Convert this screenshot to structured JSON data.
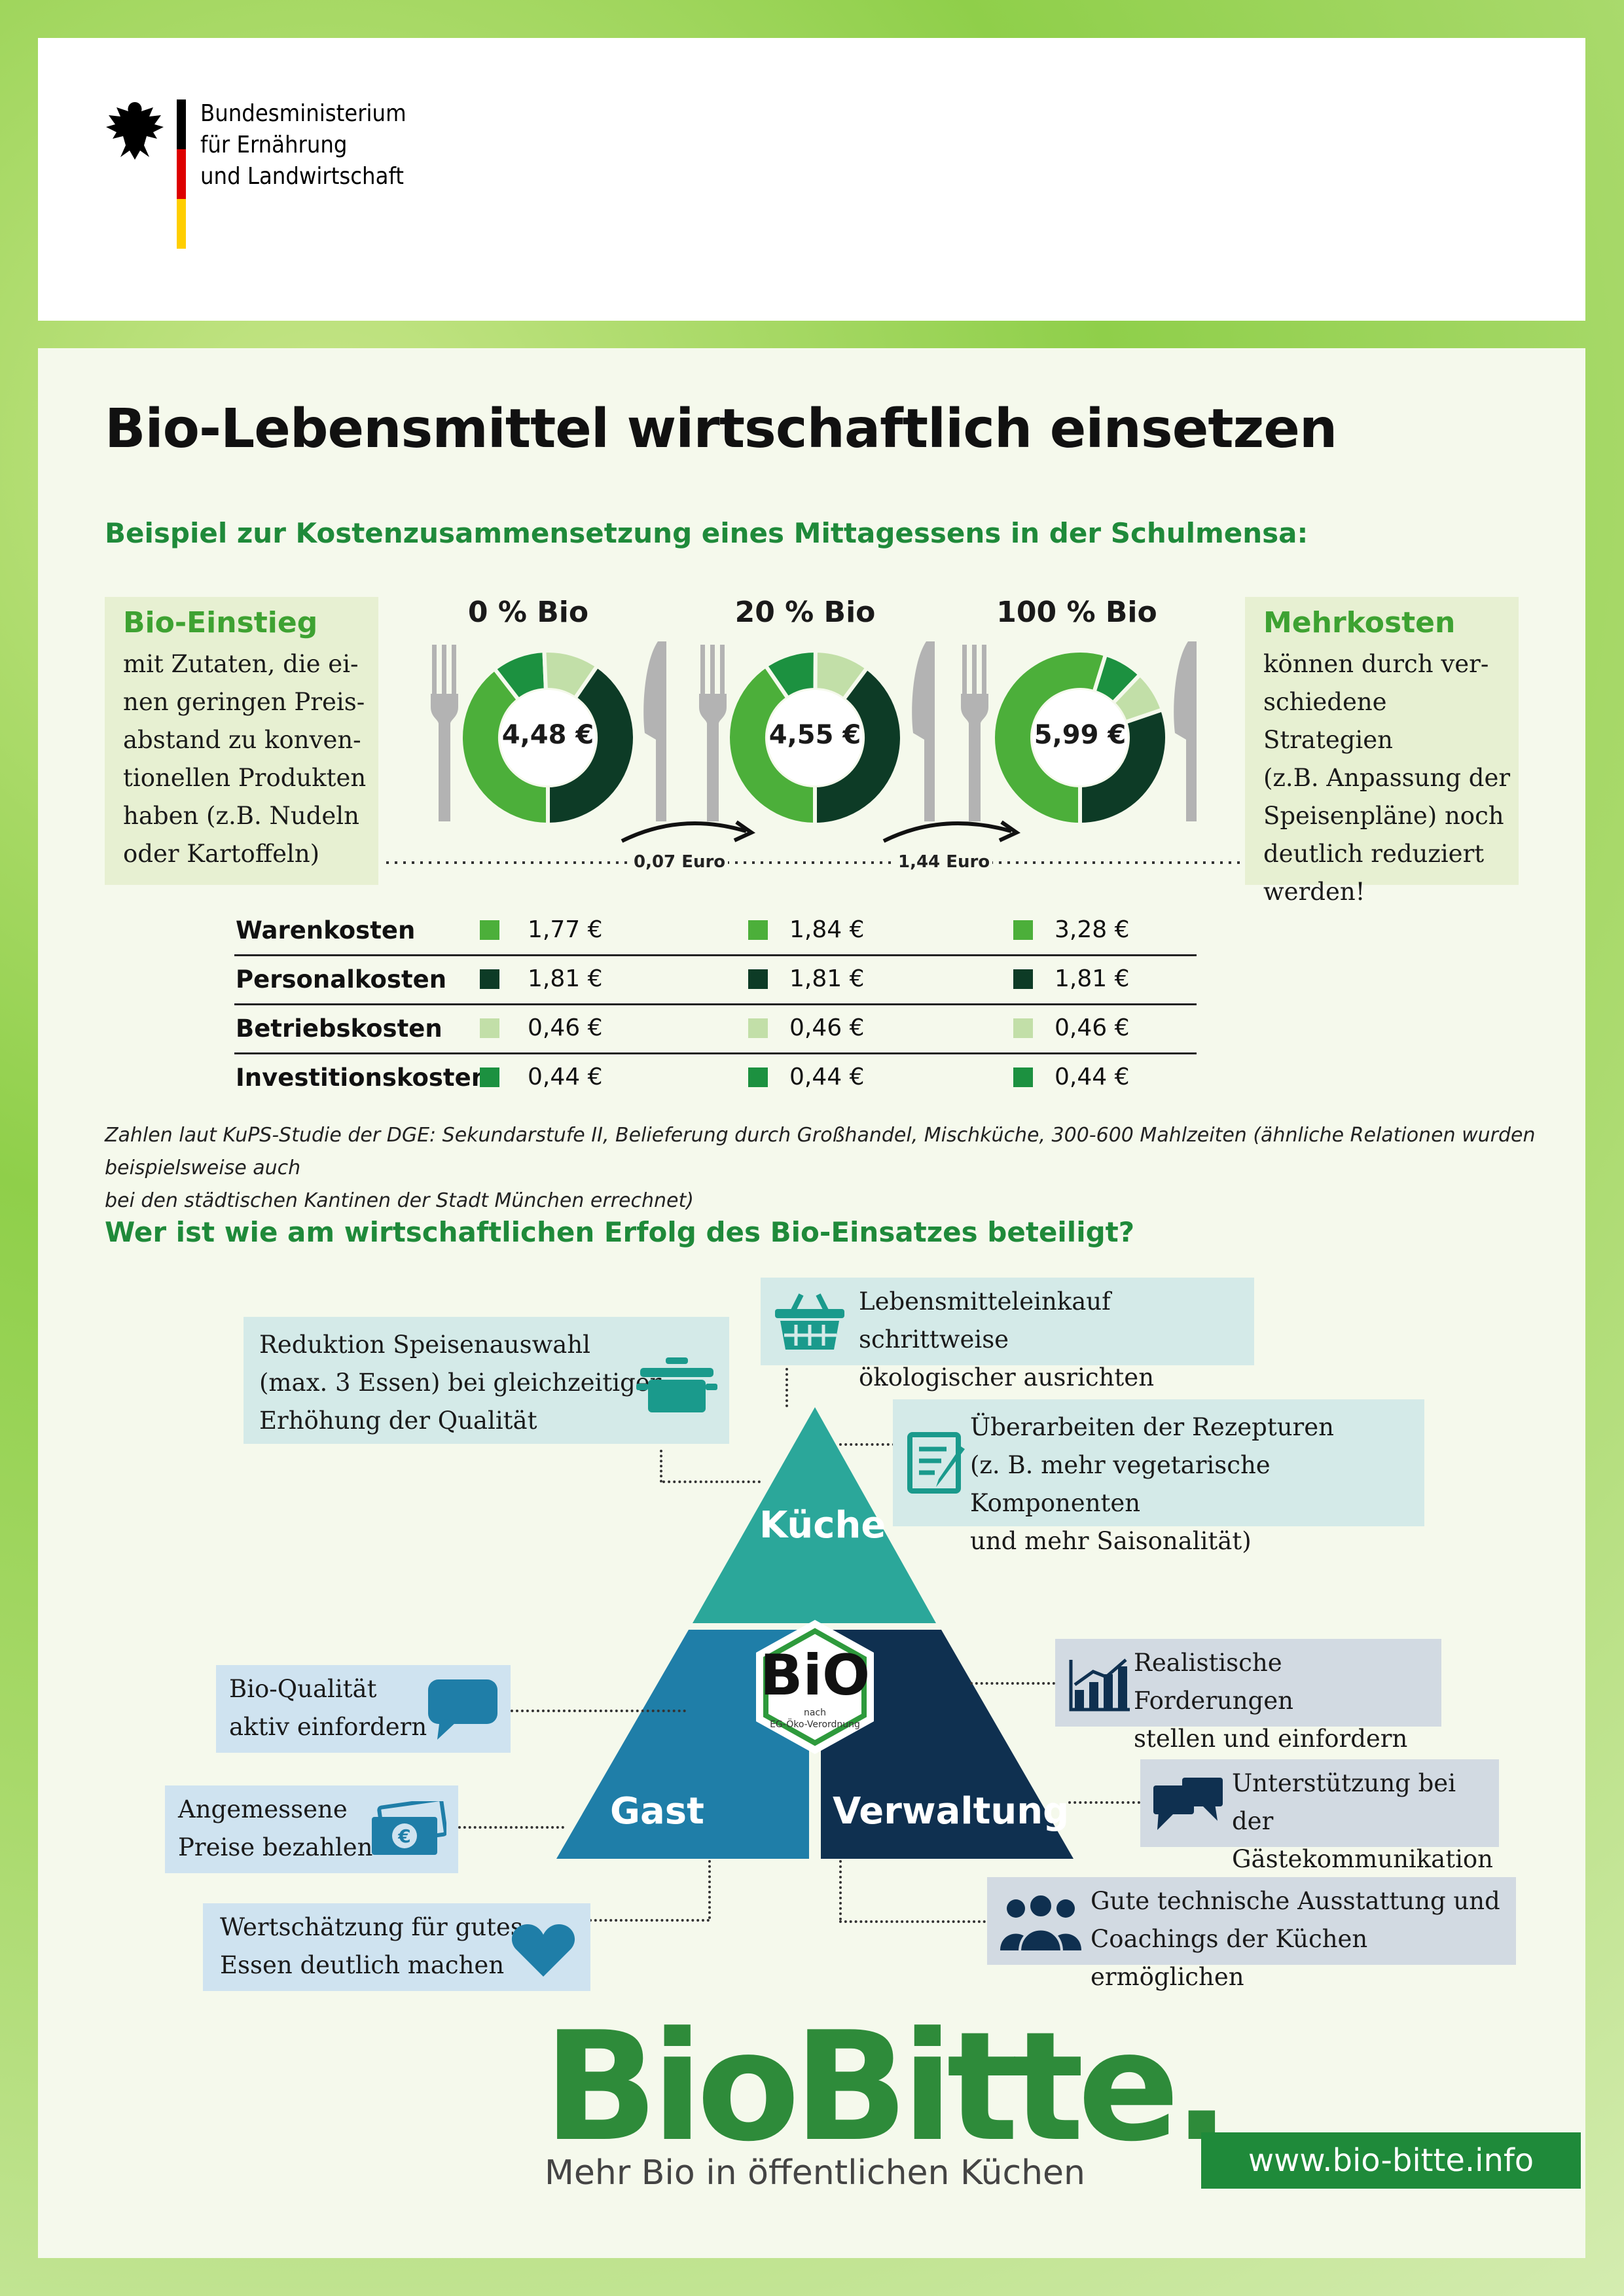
{
  "colors": {
    "warenkosten": "#4caf3a",
    "personalkosten": "#0d3b26",
    "betriebskosten": "#c2dfa8",
    "investitionskosten": "#1c9140",
    "kueche": "#2ba79a",
    "gast": "#1f7ea8",
    "verwaltung": "#0f3050"
  },
  "header": {
    "ministry_line1": "Bundesministerium",
    "ministry_line2": "für Ernährung",
    "ministry_line3": "und Landwirtschaft"
  },
  "title": "Bio-Lebensmittel wirtschaftlich einsetzen",
  "section1_heading": "Beispiel zur Kostenzusammensetzung eines Mittagessens in der Schulmensa:",
  "left_box": {
    "title": "Bio-Einstieg",
    "lines": [
      "mit Zutaten, die ei-",
      "nen geringen Preis-",
      "abstand zu konven-",
      "tionellen Produkten",
      "haben (z.B. Nudeln",
      "oder Kartoffeln)"
    ]
  },
  "right_box": {
    "title": "Mehrkosten",
    "lines": [
      "können durch ver-",
      "schiedene Strategien",
      "(z.B. Anpassung der",
      "Speisenpläne) noch",
      "deutlich reduziert",
      "werden!"
    ]
  },
  "chart_data": {
    "type": "donut",
    "categories": [
      "0 % Bio",
      "20 % Bio",
      "100 % Bio"
    ],
    "totals": [
      "4,48 €",
      "4,55 €",
      "5,99 €"
    ],
    "series": [
      {
        "name": "Warenkosten",
        "values": [
          1.77,
          1.84,
          3.28
        ],
        "labels": [
          "1,77 €",
          "1,84 €",
          "3,28 €"
        ]
      },
      {
        "name": "Personalkosten",
        "values": [
          1.81,
          1.81,
          1.81
        ],
        "labels": [
          "1,81 €",
          "1,81 €",
          "1,81 €"
        ]
      },
      {
        "name": "Betriebskosten",
        "values": [
          0.46,
          0.46,
          0.46
        ],
        "labels": [
          "0,46 €",
          "0,46 €",
          "0,46 €"
        ]
      },
      {
        "name": "Investitionskosten",
        "values": [
          0.44,
          0.44,
          0.44
        ],
        "labels": [
          "0,44 €",
          "0,44 €",
          "0,44 €"
        ]
      }
    ],
    "differences": [
      "0,07 Euro",
      "1,44 Euro"
    ]
  },
  "footnote": {
    "line1": "Zahlen laut KuPS-Studie der DGE: Sekundarstufe II, Belieferung durch Großhandel, Mischküche, 300-600 Mahlzeiten (ähnliche Relationen wurden beispielsweise auch",
    "line2": "bei den städtischen Kantinen der Stadt München errechnet)"
  },
  "section2_heading": "Wer ist wie am wirtschaftlichen Erfolg des Bio-Einsatzes beteiligt?",
  "pyramid": {
    "kueche": "Küche",
    "gast": "Gast",
    "verwaltung": "Verwaltung",
    "seal_main": "BiO",
    "seal_sub1": "nach",
    "seal_sub2": "EG-Öko-Verordnung"
  },
  "boxes": {
    "reduktion": [
      "Reduktion Speisenauswahl",
      "(max. 3 Essen) bei gleichzeitiger",
      "Erhöhung der Qualität"
    ],
    "einkauf": [
      "Lebensmitteleinkauf schrittweise",
      "ökologischer ausrichten"
    ],
    "rezepturen": [
      "Überarbeiten der Rezepturen",
      "(z. B. mehr vegetarische Komponenten",
      "und mehr Saisonalität)"
    ],
    "bio_qualitaet": [
      "Bio-Qualität",
      "aktiv einfordern"
    ],
    "preise": [
      "Angemessene",
      "Preise bezahlen"
    ],
    "wertschaetzung": [
      "Wertschätzung für gutes",
      "Essen deutlich machen"
    ],
    "forderungen": [
      "Realistische Forderungen",
      "stellen und einfordern"
    ],
    "kommunikation": [
      "Unterstützung bei der",
      "Gästekommunikation"
    ],
    "ausstattung": [
      "Gute technische Ausstattung und",
      "Coachings der Küchen ermöglichen"
    ]
  },
  "icons": {
    "pot": "cooking-pot-icon",
    "basket": "shopping-basket-icon",
    "recipe": "recipe-edit-icon",
    "speech": "speech-bubble-icon",
    "money": "money-icon",
    "heart": "heart-icon",
    "chart": "bar-chart-icon",
    "chat": "chat-bubbles-icon",
    "people": "people-icon",
    "eagle": "federal-eagle-icon"
  },
  "footer": {
    "logo": "BioBitte.",
    "slogan": "Mehr Bio in öffentlichen Küchen",
    "url": "www.bio-bitte.info"
  }
}
